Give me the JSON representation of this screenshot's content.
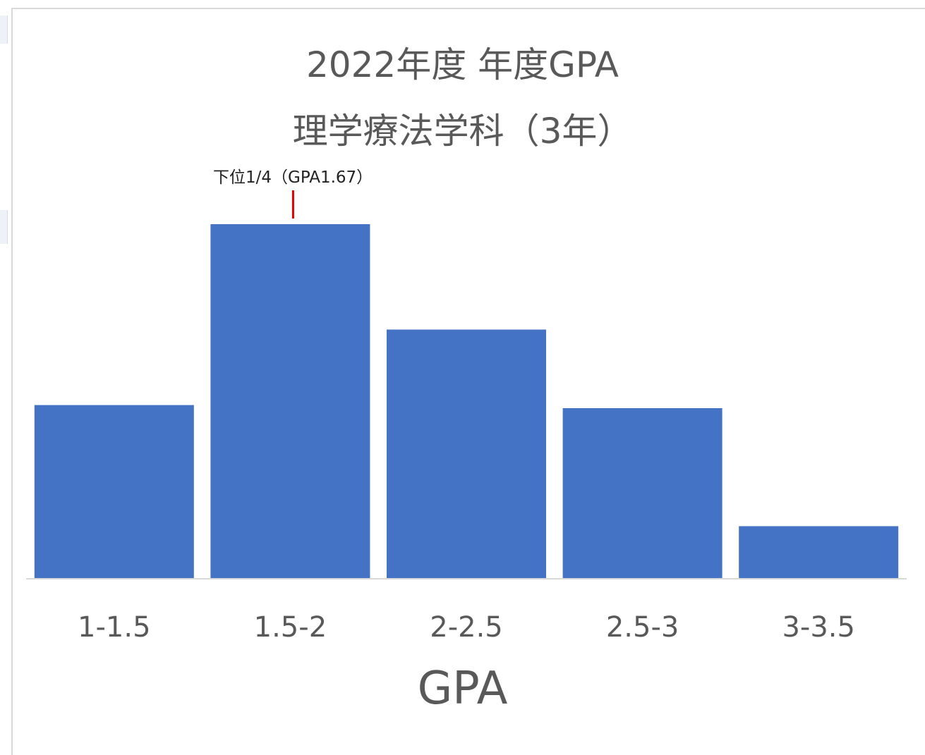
{
  "chart_data": {
    "type": "bar",
    "title": "2022年度 年度GPA",
    "subtitle": "理学療法学科（3年）",
    "xlabel": "GPA",
    "ylabel": "",
    "categories": [
      "1-1.5",
      "1.5-2",
      "2-2.5",
      "2.5-3",
      "3-3.5"
    ],
    "values": [
      22,
      45,
      31.6,
      21.6,
      6.6
    ],
    "ylim": [
      0,
      45
    ],
    "grid": false,
    "legend": "none",
    "annotation": {
      "text": "下位1/4（GPA1.67）",
      "category": "1.5-2",
      "marker_color": "#e00000"
    },
    "colors": {
      "bar": "#4472c4",
      "axis": "#d9d9d9",
      "text": "#595959"
    }
  }
}
